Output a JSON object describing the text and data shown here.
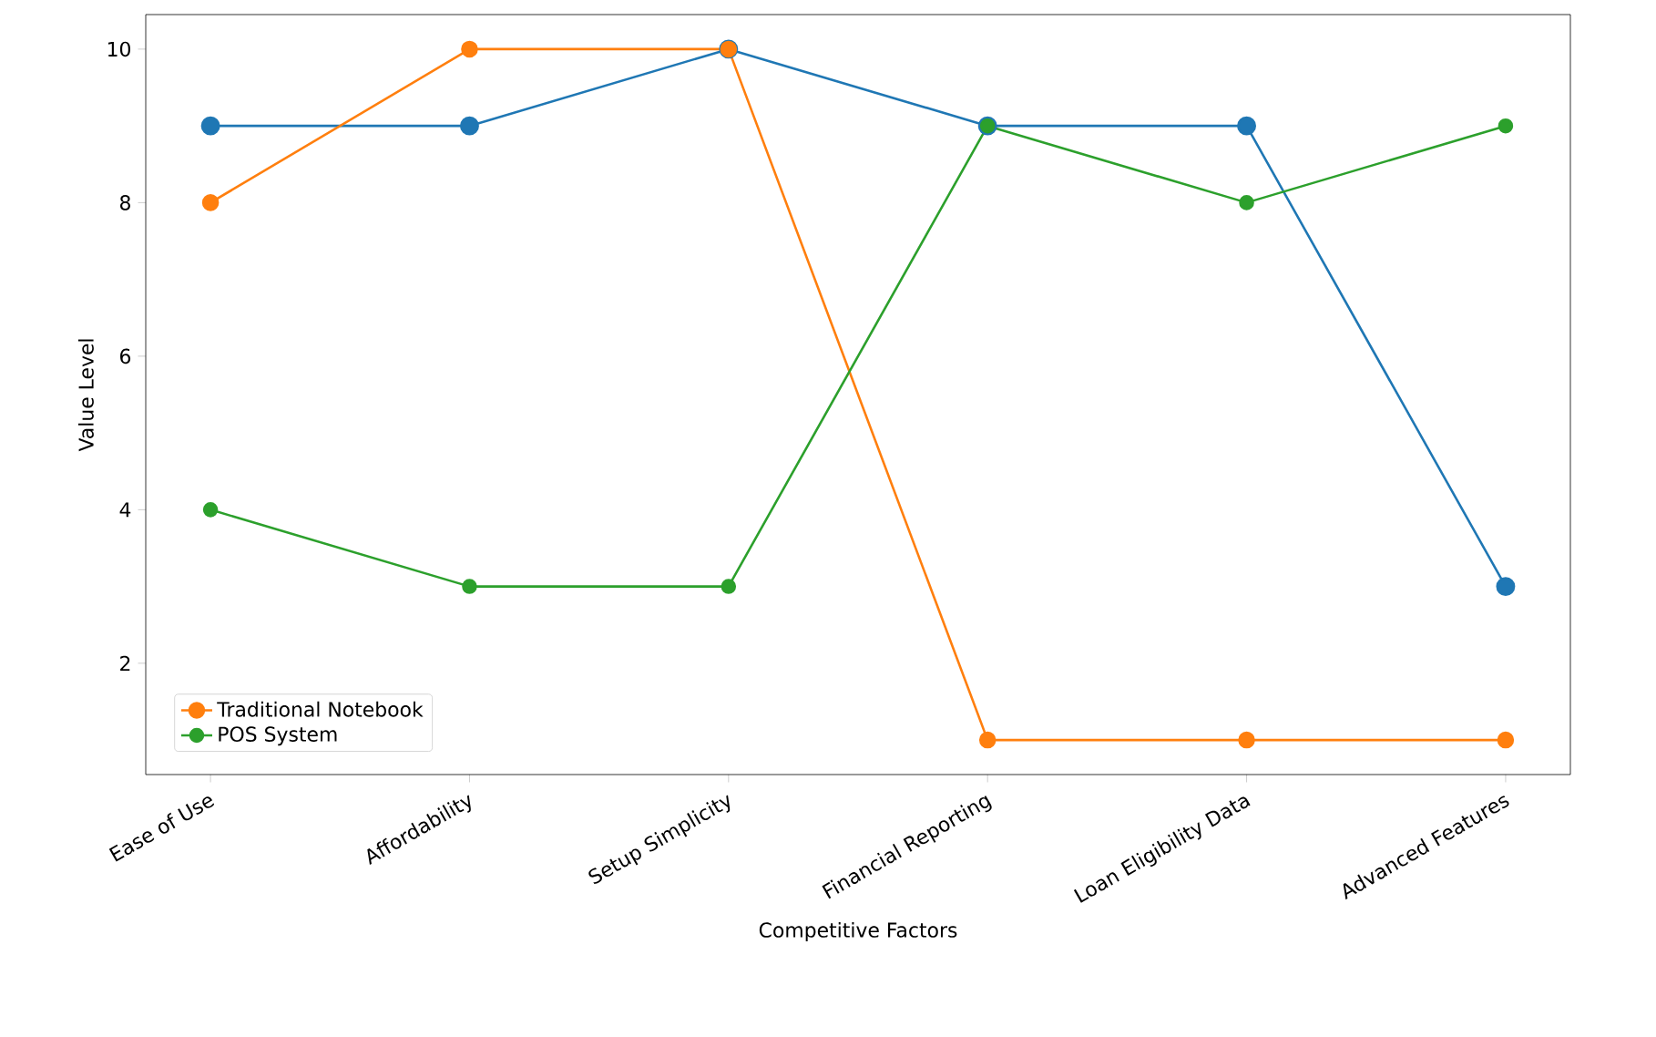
{
  "chart_data": {
    "type": "line",
    "xlabel": "Competitive Factors",
    "ylabel": "Value Level",
    "categories": [
      "Ease of Use",
      "Affordability",
      "Setup Simplicity",
      "Financial Reporting",
      "Loan Eligibility Data",
      "Advanced Features"
    ],
    "series": [
      {
        "color": "#1f77b4",
        "values": [
          9,
          9,
          10,
          9,
          9,
          3
        ]
      },
      {
        "name": "Traditional Notebook",
        "color": "#ff7f0e",
        "values": [
          8,
          10,
          10,
          1,
          1,
          1
        ]
      },
      {
        "name": "POS System",
        "color": "#2ca02c",
        "values": [
          4,
          3,
          3,
          9,
          8,
          9
        ]
      }
    ],
    "ylim": [
      0.55,
      10.45
    ],
    "yticks": [
      2,
      4,
      6,
      8,
      10
    ],
    "grid": false,
    "legend": "bottom left",
    "marker": "circle",
    "line_style": "solid"
  }
}
